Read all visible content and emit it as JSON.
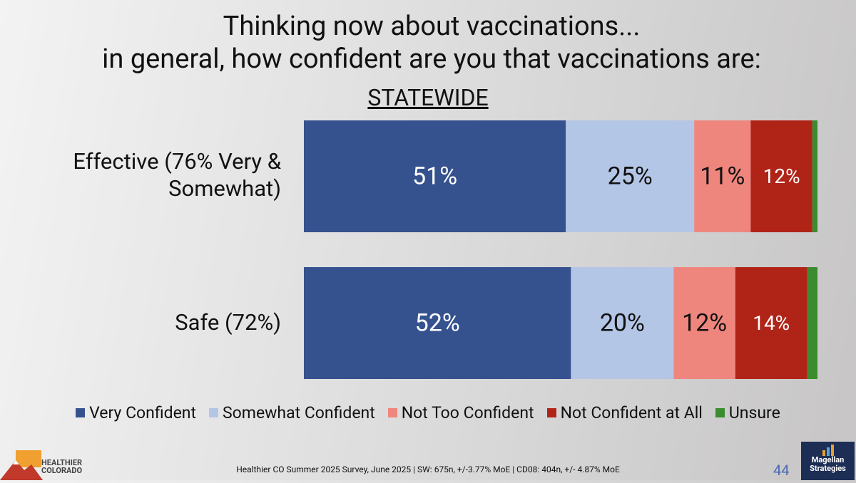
{
  "chart_data": {
    "type": "stacked-barh",
    "title": [
      "Thinking now about vaccinations...",
      "in general, how confident are you that vaccinations are:"
    ],
    "subtitle": "STATEWIDE",
    "categories": [
      "Effective (76% Very & Somewhat)",
      "Safe (72%)"
    ],
    "xlim": [
      0,
      100
    ],
    "series": [
      {
        "name": "Very Confident",
        "color": "#35528f",
        "values": [
          51,
          52
        ],
        "value_labels": [
          "51%",
          "52%"
        ],
        "label_color": "#ffffff"
      },
      {
        "name": "Somewhat Confident",
        "color": "#b4c6e6",
        "values": [
          25,
          20
        ],
        "value_labels": [
          "25%",
          "20%"
        ],
        "label_color": "#111111"
      },
      {
        "name": "Not Too Confident",
        "color": "#ef867d",
        "values": [
          11,
          12
        ],
        "value_labels": [
          "11%",
          "12%"
        ],
        "label_color": "#111111"
      },
      {
        "name": "Not Confident at All",
        "color": "#b02418",
        "values": [
          12,
          14
        ],
        "value_labels": [
          "12%",
          "14%"
        ],
        "label_color": "#ffffff"
      },
      {
        "name": "Unsure",
        "color": "#3b8b2f",
        "values": [
          1,
          2
        ]
      }
    ],
    "legend": "bottom"
  },
  "footer": {
    "source": "Healthier CO Summer 2025 Survey, June 2025 | SW: 675n, +/-3.77% MoE | CD08: 404n, +/- 4.87% MoE",
    "page_number": "44",
    "left_logo": [
      "HEALTHIER",
      "COLORADO"
    ],
    "right_logo": [
      "Magellan",
      "Strategies"
    ]
  }
}
